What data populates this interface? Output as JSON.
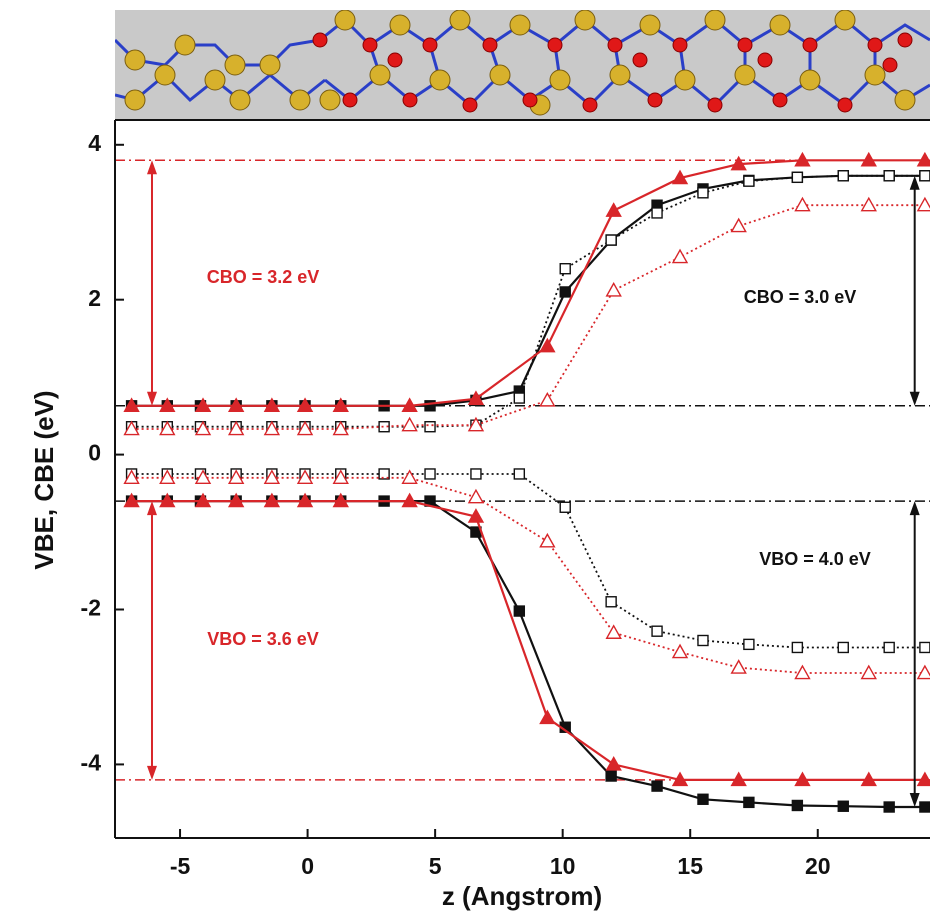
{
  "chart_data": {
    "type": "line",
    "xlabel": "z (Angstrom)",
    "ylabel": "VBE, CBE (eV)",
    "xlim": [
      -7.55,
      24.4
    ],
    "ylim": [
      -4.95,
      4.32
    ],
    "xticks": [
      -5,
      0,
      5,
      10,
      15,
      20
    ],
    "yticks": [
      -4,
      -2,
      0,
      2,
      4
    ],
    "series": [
      {
        "color": "#111111",
        "marker": "square",
        "filled": true,
        "dash": "solid",
        "x": [
          -6.9,
          -5.5,
          -4.2,
          -2.8,
          -1.4,
          -0.1,
          1.3,
          3.0,
          4.8,
          6.6,
          8.3,
          10.1,
          11.9,
          13.7,
          15.5,
          17.3,
          19.2,
          21.0,
          22.8,
          24.2
        ],
        "values": [
          0.63,
          0.63,
          0.63,
          0.63,
          0.63,
          0.63,
          0.63,
          0.63,
          0.63,
          0.7,
          0.82,
          2.1,
          2.77,
          3.22,
          3.43,
          3.54,
          3.58,
          3.6,
          3.6,
          3.6
        ]
      },
      {
        "color": "#111111",
        "marker": "square",
        "filled": true,
        "dash": "solid",
        "x": [
          -6.9,
          -5.5,
          -4.2,
          -2.8,
          -1.4,
          -0.1,
          1.3,
          3.0,
          4.8,
          6.6,
          8.3,
          10.1,
          11.9,
          13.7,
          15.5,
          17.3,
          19.2,
          21.0,
          22.8,
          24.2
        ],
        "values": [
          -0.6,
          -0.6,
          -0.6,
          -0.6,
          -0.6,
          -0.6,
          -0.6,
          -0.6,
          -0.6,
          -1.0,
          -2.02,
          -3.52,
          -4.15,
          -4.28,
          -4.45,
          -4.49,
          -4.53,
          -4.54,
          -4.55,
          -4.55
        ]
      },
      {
        "color": "#111111",
        "marker": "square",
        "filled": false,
        "dash": "dotted",
        "x": [
          -6.9,
          -5.5,
          -4.2,
          -2.8,
          -1.4,
          -0.1,
          1.3,
          3.0,
          4.8,
          6.6,
          8.3,
          10.1,
          11.9,
          13.7,
          15.5,
          17.3,
          19.2,
          21.0,
          22.8,
          24.2
        ],
        "values": [
          0.36,
          0.36,
          0.36,
          0.36,
          0.36,
          0.36,
          0.36,
          0.36,
          0.36,
          0.38,
          0.73,
          2.4,
          2.77,
          3.12,
          3.38,
          3.53,
          3.58,
          3.6,
          3.6,
          3.6
        ]
      },
      {
        "color": "#111111",
        "marker": "square",
        "filled": false,
        "dash": "dotted",
        "x": [
          -6.9,
          -5.5,
          -4.2,
          -2.8,
          -1.4,
          -0.1,
          1.3,
          3.0,
          4.8,
          6.6,
          8.3,
          10.1,
          11.9,
          13.7,
          15.5,
          17.3,
          19.2,
          21.0,
          22.8,
          24.2
        ],
        "values": [
          -0.25,
          -0.25,
          -0.25,
          -0.25,
          -0.25,
          -0.25,
          -0.25,
          -0.25,
          -0.25,
          -0.25,
          -0.25,
          -0.68,
          -1.9,
          -2.28,
          -2.4,
          -2.45,
          -2.49,
          -2.49,
          -2.49,
          -2.49
        ]
      },
      {
        "color": "#d8262a",
        "marker": "triangle",
        "filled": true,
        "dash": "solid",
        "x": [
          -6.9,
          -5.5,
          -4.1,
          -2.8,
          -1.4,
          -0.1,
          1.3,
          4.0,
          6.6,
          9.4,
          12.0,
          14.6,
          16.9,
          19.4,
          22.0,
          24.2
        ],
        "values": [
          0.63,
          0.63,
          0.63,
          0.63,
          0.63,
          0.63,
          0.63,
          0.63,
          0.72,
          1.4,
          3.15,
          3.57,
          3.75,
          3.8,
          3.8,
          3.8
        ]
      },
      {
        "color": "#d8262a",
        "marker": "triangle",
        "filled": true,
        "dash": "solid",
        "x": [
          -6.9,
          -5.5,
          -4.1,
          -2.8,
          -1.4,
          -0.1,
          1.3,
          4.0,
          6.6,
          9.4,
          12.0,
          14.6,
          16.9,
          19.4,
          22.0,
          24.2
        ],
        "values": [
          -0.6,
          -0.6,
          -0.6,
          -0.6,
          -0.6,
          -0.6,
          -0.6,
          -0.6,
          -0.8,
          -3.4,
          -4.0,
          -4.2,
          -4.2,
          -4.2,
          -4.2,
          -4.2
        ]
      },
      {
        "color": "#d8262a",
        "marker": "triangle",
        "filled": false,
        "dash": "dotted",
        "x": [
          -6.9,
          -5.5,
          -4.1,
          -2.8,
          -1.4,
          -0.1,
          1.3,
          4.0,
          6.6,
          9.4,
          12.0,
          14.6,
          16.9,
          19.4,
          22.0,
          24.2
        ],
        "values": [
          0.33,
          0.33,
          0.33,
          0.33,
          0.33,
          0.33,
          0.33,
          0.38,
          0.38,
          0.7,
          2.12,
          2.55,
          2.95,
          3.22,
          3.22,
          3.22
        ]
      },
      {
        "color": "#d8262a",
        "marker": "triangle",
        "filled": false,
        "dash": "dotted",
        "x": [
          -6.9,
          -5.5,
          -4.1,
          -2.8,
          -1.4,
          -0.1,
          1.3,
          4.0,
          6.6,
          9.4,
          12.0,
          14.6,
          16.9,
          19.4,
          22.0,
          24.2
        ],
        "values": [
          -0.3,
          -0.3,
          -0.3,
          -0.3,
          -0.3,
          -0.3,
          -0.3,
          -0.3,
          -0.55,
          -1.12,
          -2.3,
          -2.55,
          -2.75,
          -2.82,
          -2.82,
          -2.82
        ]
      }
    ],
    "reference_lines": [
      {
        "value": 3.8,
        "color": "#d8262a"
      },
      {
        "value": -4.2,
        "color": "#d8262a"
      },
      {
        "value": 0.63,
        "color": "#111111"
      },
      {
        "value": -0.6,
        "color": "#111111"
      }
    ],
    "arrows": [
      {
        "x": -6.1,
        "from": 3.8,
        "to": 0.63,
        "color": "#d8262a"
      },
      {
        "x": -6.1,
        "from": -0.6,
        "to": -4.2,
        "color": "#d8262a"
      },
      {
        "x": 23.8,
        "from": 3.6,
        "to": 0.63,
        "color": "#111111"
      },
      {
        "x": 23.8,
        "from": -0.6,
        "to": -4.55,
        "color": "#111111"
      }
    ],
    "annotations": [
      {
        "text": "CBO = 3.2 eV",
        "color": "#d8262a"
      },
      {
        "text": "VBO = 3.6 eV",
        "color": "#d8262a"
      },
      {
        "text": "CBO = 3.0 eV",
        "color": "#111111"
      },
      {
        "text": "VBO = 4.0 eV",
        "color": "#111111"
      }
    ]
  }
}
